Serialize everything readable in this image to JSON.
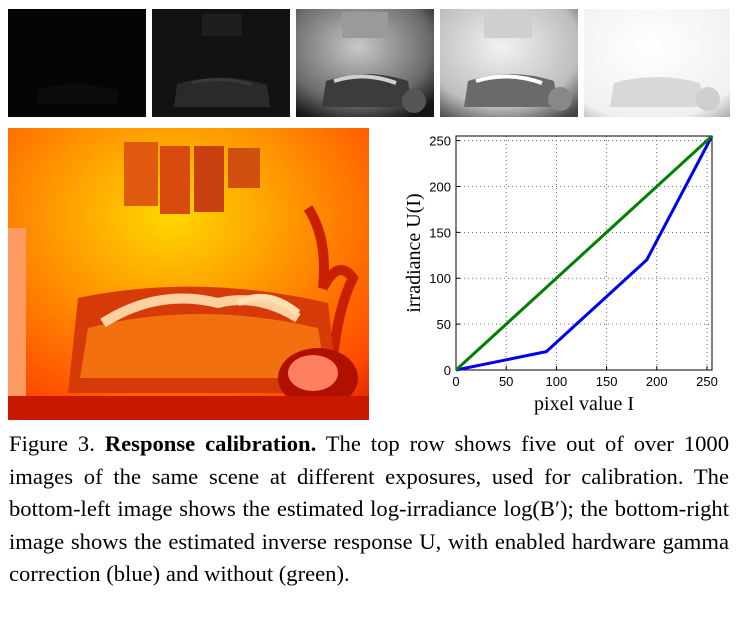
{
  "figure": {
    "thumbnails": [
      {
        "name": "exposure-1",
        "brightness": 0.03
      },
      {
        "name": "exposure-2",
        "brightness": 0.12
      },
      {
        "name": "exposure-3",
        "brightness": 0.45
      },
      {
        "name": "exposure-4",
        "brightness": 0.75
      },
      {
        "name": "exposure-5",
        "brightness": 0.95
      }
    ],
    "heatmap_colors": {
      "hot": "#ffdd00",
      "mid": "#ff6a00",
      "dark": "#c81400"
    }
  },
  "chart_data": {
    "type": "line",
    "xlabel": "pixel value I",
    "ylabel": "irradiance U(I)",
    "xlim": [
      0,
      255
    ],
    "ylim": [
      0,
      255
    ],
    "xticks": [
      0,
      50,
      100,
      150,
      200,
      250
    ],
    "yticks": [
      0,
      50,
      100,
      150,
      200,
      250
    ],
    "grid": true,
    "series": [
      {
        "color": "#0000ee",
        "x": [
          0,
          90,
          190,
          255
        ],
        "y": [
          0,
          20,
          120,
          255
        ]
      },
      {
        "color": "#008000",
        "x": [
          0,
          255
        ],
        "y": [
          0,
          255
        ]
      }
    ]
  },
  "caption": {
    "label": "Figure 3.",
    "title": "Response calibration.",
    "text": "The top row shows five out of over 1000 images of the same scene at different exposures, used for calibration. The bottom-left image shows the estimated log-irradiance log(B′); the bottom-right image shows the estimated inverse response U, with enabled hardware gamma correction (blue) and without (green)."
  }
}
